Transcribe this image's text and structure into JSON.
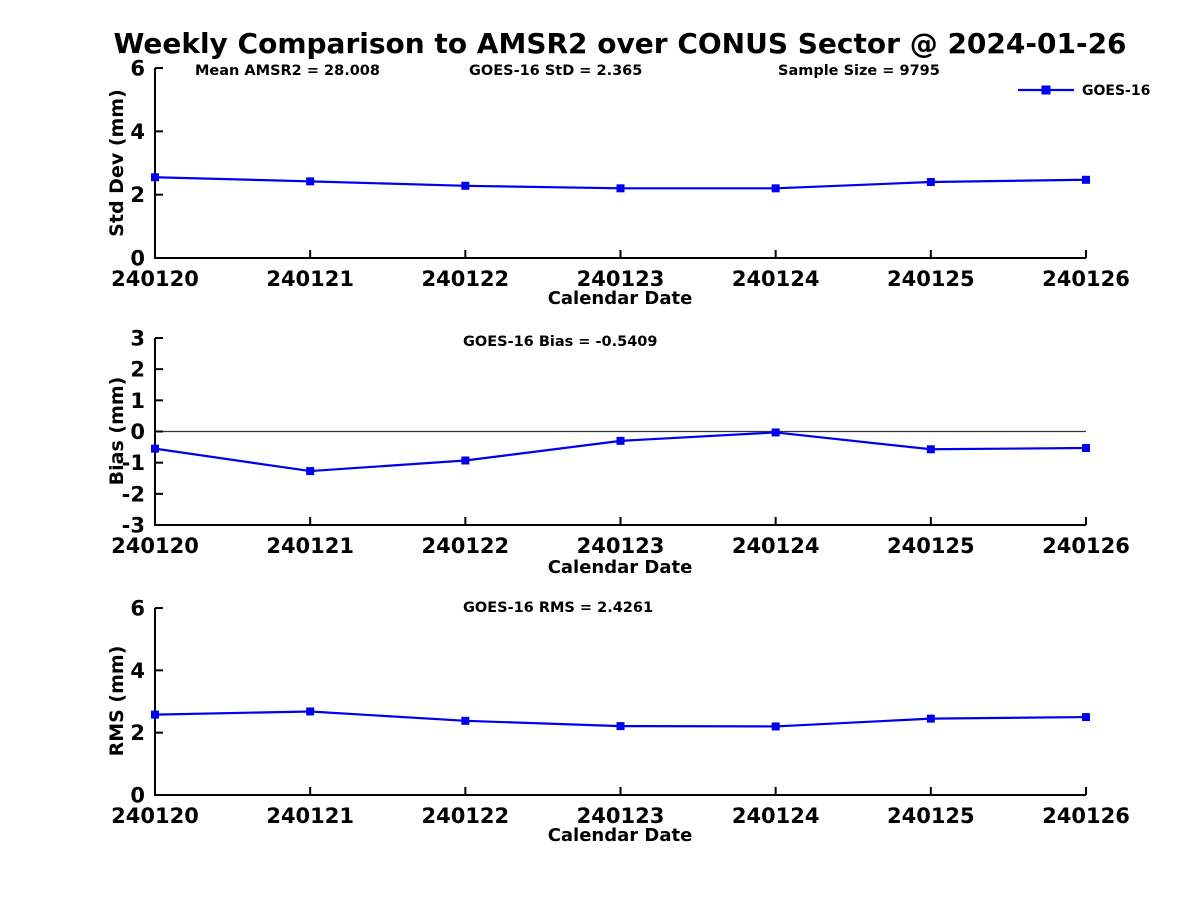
{
  "figure": {
    "title": "Weekly Comparison to AMSR2 over CONUS Sector @ 2024-01-26",
    "background_color": "#ffffff",
    "line_color": "#0000EE",
    "axis_color": "#000000",
    "text_color": "#000000",
    "legend": {
      "label": "GOES-16",
      "marker": "square",
      "position": "upper right"
    }
  },
  "chart_data": [
    {
      "id": "stddev",
      "type": "line",
      "marker": "square",
      "ylabel": "Std Dev (mm)",
      "xlabel": "Calendar Date",
      "ylim": [
        0,
        6
      ],
      "yticks": [
        0,
        2,
        4,
        6
      ],
      "grid": false,
      "zero_line": false,
      "categories": [
        "240120",
        "240121",
        "240122",
        "240123",
        "240124",
        "240125",
        "240126"
      ],
      "series": [
        {
          "name": "GOES-16",
          "values": [
            2.55,
            2.42,
            2.28,
            2.2,
            2.2,
            2.4,
            2.47
          ]
        }
      ],
      "annotations": [
        "Mean AMSR2 = 28.008",
        "GOES-16 StD = 2.365",
        "Sample Size = 9795"
      ]
    },
    {
      "id": "bias",
      "type": "line",
      "marker": "square",
      "ylabel": "Bias (mm)",
      "xlabel": "Calendar Date",
      "ylim": [
        -3,
        3
      ],
      "yticks": [
        -3,
        -2,
        -1,
        0,
        1,
        2,
        3
      ],
      "grid": false,
      "zero_line": true,
      "categories": [
        "240120",
        "240121",
        "240122",
        "240123",
        "240124",
        "240125",
        "240126"
      ],
      "series": [
        {
          "name": "GOES-16",
          "values": [
            -0.55,
            -1.27,
            -0.93,
            -0.3,
            -0.03,
            -0.57,
            -0.53
          ]
        }
      ],
      "annotations": [
        "GOES-16 Bias  = -0.5409"
      ]
    },
    {
      "id": "rms",
      "type": "line",
      "marker": "square",
      "ylabel": "RMS (mm)",
      "xlabel": "Calendar Date",
      "ylim": [
        0,
        6
      ],
      "yticks": [
        0,
        2,
        4,
        6
      ],
      "grid": false,
      "zero_line": false,
      "categories": [
        "240120",
        "240121",
        "240122",
        "240123",
        "240124",
        "240125",
        "240126"
      ],
      "series": [
        {
          "name": "GOES-16",
          "values": [
            2.58,
            2.68,
            2.38,
            2.21,
            2.2,
            2.45,
            2.5
          ]
        }
      ],
      "annotations": [
        "GOES-16 RMS = 2.4261"
      ]
    }
  ]
}
